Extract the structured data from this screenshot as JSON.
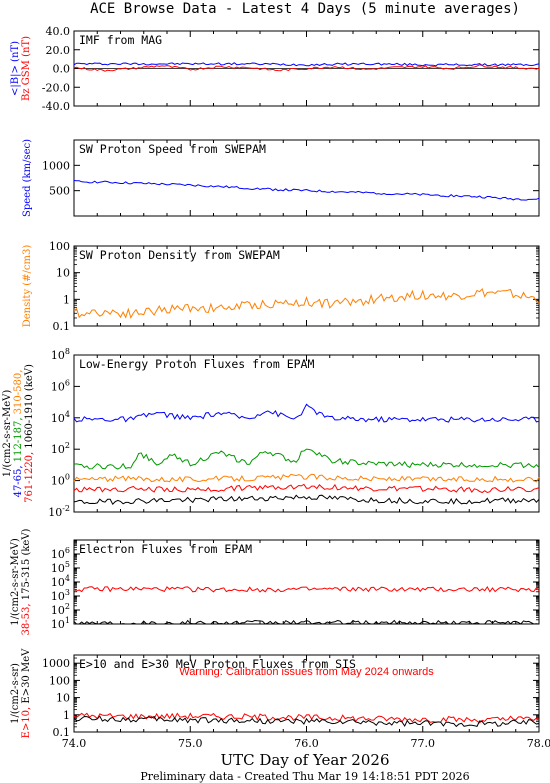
{
  "page": {
    "title": "ACE Browse Data - Latest 4 Days (5 minute averages)",
    "xlabel": "UTC Day of Year 2026",
    "footer": "Preliminary data - Created Thu Mar 19 14:18:51 PDT 2026"
  },
  "colors": {
    "blue": "#0000ff",
    "red": "#ff0000",
    "orange": "#ff7f00",
    "green": "#009900",
    "black": "#000000"
  },
  "chart_data": [
    {
      "type": "line",
      "title": "IMF from MAG",
      "ylim": [
        -40,
        40
      ],
      "yscale": "linear",
      "yticks": [
        "40.0",
        "20.0",
        "0.0",
        "-20.0",
        "-40.0"
      ],
      "ylabel_parts": [
        {
          "text": "<|B|> (nT)",
          "color": "#0000ff"
        },
        {
          "text": "Bz GSM (nT)",
          "color": "#ff0000"
        }
      ],
      "series": [
        {
          "color": "#0000ff",
          "x": [
            74.0,
            74.5,
            75.0,
            75.5,
            76.0,
            76.5,
            77.0,
            77.5,
            78.0
          ],
          "y": [
            5,
            5,
            5,
            5,
            4,
            5,
            4,
            4,
            4
          ]
        },
        {
          "color": "#ff0000",
          "x": [
            74.0,
            74.25,
            74.5,
            74.75,
            75.0,
            75.25,
            75.5,
            75.75,
            76.0,
            76.25,
            76.5,
            76.75,
            77.0,
            77.25,
            77.5,
            77.75,
            78.0
          ],
          "y": [
            1,
            -2,
            0,
            3,
            -1,
            2,
            1,
            -2,
            0,
            2,
            -1,
            1,
            2,
            0,
            3,
            1,
            0
          ]
        }
      ]
    },
    {
      "type": "line",
      "title": "SW Proton Speed from SWEPAM",
      "ylim": [
        0,
        1500
      ],
      "yscale": "linear",
      "yticks": [
        "1000",
        "500"
      ],
      "ylabel_parts": [
        {
          "text": "Speed (km/sec)",
          "color": "#0000ff"
        }
      ],
      "series": [
        {
          "color": "#0000ff",
          "x": [
            74.0,
            74.25,
            74.5,
            74.75,
            75.0,
            75.25,
            75.5,
            75.75,
            76.0,
            76.25,
            76.5,
            76.75,
            77.0,
            77.25,
            77.5,
            77.75,
            78.0
          ],
          "y": [
            680,
            670,
            650,
            630,
            610,
            580,
            550,
            520,
            500,
            480,
            460,
            440,
            420,
            400,
            380,
            340,
            330
          ]
        }
      ]
    },
    {
      "type": "line",
      "title": "SW Proton Density from SWEPAM",
      "ylim": [
        0.1,
        100
      ],
      "yscale": "log",
      "yticks": [
        "100",
        "10",
        "1",
        "0.1"
      ],
      "ylabel_parts": [
        {
          "text": "Density (#/cm3)",
          "color": "#ff7f00"
        }
      ],
      "series": [
        {
          "color": "#ff7f00",
          "x": [
            74.0,
            74.25,
            74.5,
            74.75,
            75.0,
            75.25,
            75.5,
            75.75,
            76.0,
            76.25,
            76.5,
            76.75,
            77.0,
            77.25,
            77.5,
            77.75,
            78.0
          ],
          "y": [
            0.3,
            0.35,
            0.3,
            0.4,
            0.5,
            0.45,
            0.6,
            0.7,
            0.8,
            0.7,
            0.9,
            1.2,
            1.5,
            1.3,
            1.8,
            1.6,
            1.0
          ]
        }
      ]
    },
    {
      "type": "line",
      "title": "Low-Energy Proton Fluxes from EPAM",
      "ylim": [
        0.01,
        100000000
      ],
      "yscale": "log",
      "yticks": [
        "10^8",
        "10^6",
        "10^4",
        "10^2",
        "10^0",
        "10^-2"
      ],
      "ylabel_parts": [
        {
          "text": "1/(cm2-s-sr-MeV)",
          "color": "#000000"
        },
        {
          "text": "47-65,",
          "color": "#0000ff"
        },
        {
          "text": "112-187,",
          "color": "#009900"
        },
        {
          "text": "310-580,",
          "color": "#ff7f00"
        },
        {
          "text": "761-1220,",
          "color": "#ff0000"
        },
        {
          "text": "1060-1910 (keV)",
          "color": "#000000"
        }
      ],
      "series": [
        {
          "color": "#0000ff",
          "x": [
            74.0,
            74.5,
            74.7,
            75.0,
            75.25,
            75.5,
            75.65,
            75.9,
            76.0,
            76.2,
            76.5,
            77.0,
            77.5,
            78.0
          ],
          "y": [
            8000,
            8000,
            20000,
            9000,
            20000,
            9000,
            30000,
            8000,
            50000,
            9000,
            8000,
            8000,
            8000,
            8000
          ]
        },
        {
          "color": "#009900",
          "x": [
            74.0,
            74.5,
            74.55,
            74.75,
            74.85,
            75.0,
            75.25,
            75.5,
            75.65,
            75.9,
            76.0,
            76.2,
            76.5,
            77.0,
            77.5,
            78.0
          ],
          "y": [
            8,
            8,
            60,
            10,
            50,
            12,
            60,
            12,
            80,
            15,
            150,
            20,
            12,
            10,
            10,
            10
          ]
        },
        {
          "color": "#ff7f00",
          "x": [
            74.0,
            74.5,
            75.0,
            75.5,
            76.0,
            76.5,
            77.0,
            77.5,
            78.0
          ],
          "y": [
            1.2,
            1.3,
            1.2,
            1.4,
            1.8,
            1.3,
            1.2,
            1.2,
            1.2
          ]
        },
        {
          "color": "#ff0000",
          "x": [
            74.0,
            74.5,
            75.0,
            75.5,
            76.0,
            76.5,
            77.0,
            77.5,
            78.0
          ],
          "y": [
            0.25,
            0.3,
            0.25,
            0.35,
            0.45,
            0.3,
            0.3,
            0.25,
            0.3
          ]
        },
        {
          "color": "#000000",
          "x": [
            74.0,
            74.5,
            75.0,
            75.5,
            76.0,
            76.5,
            77.0,
            77.5,
            78.0
          ],
          "y": [
            0.04,
            0.05,
            0.06,
            0.07,
            0.09,
            0.06,
            0.05,
            0.05,
            0.06
          ]
        }
      ]
    },
    {
      "type": "line",
      "title": "Electron Fluxes from EPAM",
      "ylim": [
        10,
        10000000
      ],
      "yscale": "log",
      "yticks": [
        "10^6",
        "10^5",
        "10^4",
        "10^3",
        "10^2",
        "10^1"
      ],
      "ylabel_parts": [
        {
          "text": "1/(cm2-s-sr-MeV)",
          "color": "#000000"
        },
        {
          "text": "38-53,",
          "color": "#ff0000"
        },
        {
          "text": "175-315 (keV)",
          "color": "#000000"
        }
      ],
      "series": [
        {
          "color": "#ff0000",
          "x": [
            74.0,
            74.5,
            75.0,
            75.5,
            76.0,
            76.5,
            77.0,
            77.5,
            78.0
          ],
          "y": [
            3000,
            3200,
            3000,
            2800,
            3000,
            3100,
            2900,
            3000,
            3000
          ]
        },
        {
          "color": "#000000",
          "x": [
            74.0,
            74.5,
            75.0,
            75.5,
            76.0,
            76.5,
            77.0,
            77.5,
            78.0
          ],
          "y": [
            12,
            12,
            12,
            12,
            12,
            12,
            12,
            12,
            12
          ]
        }
      ]
    },
    {
      "type": "line",
      "title": "E>10 and E>30 MeV Proton Fluxes from SIS",
      "ylim": [
        0.1,
        3000
      ],
      "yscale": "log",
      "yticks": [
        "1000",
        "100",
        "10",
        "1",
        "0.1"
      ],
      "annotation": "Warning: Calibration issues from May 2024 onwards",
      "ylabel_parts": [
        {
          "text": "1/(cm2-s-sr)",
          "color": "#000000"
        },
        {
          "text": "E>10,",
          "color": "#ff0000"
        },
        {
          "text": "E>30 MeV",
          "color": "#000000"
        }
      ],
      "series": [
        {
          "color": "#ff0000",
          "x": [
            74.0,
            74.5,
            75.0,
            75.5,
            76.0,
            76.5,
            77.0,
            77.5,
            78.0
          ],
          "y": [
            0.9,
            0.8,
            0.85,
            0.75,
            0.7,
            0.6,
            0.55,
            0.5,
            0.6
          ]
        },
        {
          "color": "#000000",
          "x": [
            74.0,
            74.5,
            75.0,
            75.5,
            76.0,
            76.5,
            77.0,
            77.5,
            78.0
          ],
          "y": [
            0.6,
            0.55,
            0.5,
            0.45,
            0.4,
            0.35,
            0.3,
            0.3,
            0.4
          ]
        }
      ]
    }
  ],
  "x_axis": {
    "range": [
      74.0,
      78.0
    ],
    "ticks": [
      "74.0",
      "75.0",
      "76.0",
      "77.0",
      "78.0"
    ]
  }
}
